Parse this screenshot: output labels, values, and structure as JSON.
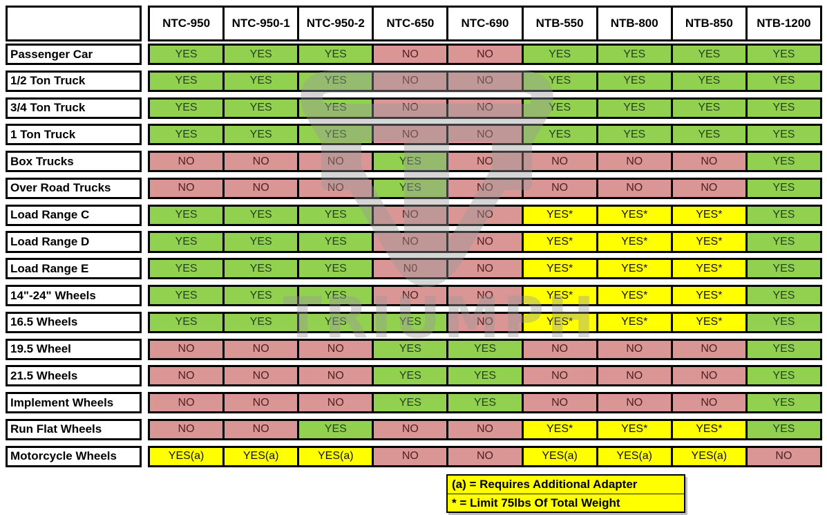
{
  "chart_data": {
    "type": "table",
    "columns": [
      "NTC-950",
      "NTC-950-1",
      "NTC-950-2",
      "NTC-650",
      "NTC-690",
      "NTB-550",
      "NTB-800",
      "NTB-850",
      "NTB-1200"
    ],
    "rows": [
      {
        "label": "Passenger Car",
        "values": [
          "YES",
          "YES",
          "YES",
          "NO",
          "NO",
          "YES",
          "YES",
          "YES",
          "YES"
        ]
      },
      {
        "label": "1/2 Ton Truck",
        "values": [
          "YES",
          "YES",
          "YES",
          "NO",
          "NO",
          "YES",
          "YES",
          "YES",
          "YES"
        ]
      },
      {
        "label": "3/4 Ton Truck",
        "values": [
          "YES",
          "YES",
          "YES",
          "NO",
          "NO",
          "YES",
          "YES",
          "YES",
          "YES"
        ]
      },
      {
        "label": "1 Ton Truck",
        "values": [
          "YES",
          "YES",
          "YES",
          "NO",
          "NO",
          "YES",
          "YES",
          "YES",
          "YES"
        ]
      },
      {
        "label": "Box Trucks",
        "values": [
          "NO",
          "NO",
          "NO",
          "YES",
          "NO",
          "NO",
          "NO",
          "NO",
          "YES"
        ]
      },
      {
        "label": "Over Road Trucks",
        "values": [
          "NO",
          "NO",
          "NO",
          "YES",
          "NO",
          "NO",
          "NO",
          "NO",
          "YES"
        ]
      },
      {
        "label": "Load Range C",
        "values": [
          "YES",
          "YES",
          "YES",
          "NO",
          "NO",
          "YES*",
          "YES*",
          "YES*",
          "YES"
        ]
      },
      {
        "label": "Load Range D",
        "values": [
          "YES",
          "YES",
          "YES",
          "NO",
          "NO",
          "YES*",
          "YES*",
          "YES*",
          "YES"
        ]
      },
      {
        "label": "Load Range E",
        "values": [
          "YES",
          "YES",
          "YES",
          "N0",
          "NO",
          "YES*",
          "YES*",
          "YES*",
          "YES"
        ]
      },
      {
        "label": "14\"-24\" Wheels",
        "values": [
          "YES",
          "YES",
          "YES",
          "NO",
          "NO",
          "YES*",
          "YES*",
          "YES*",
          "YES"
        ]
      },
      {
        "label": "16.5 Wheels",
        "values": [
          "YES",
          "YES",
          "YES",
          "YES",
          "NO",
          "YES*",
          "YES*",
          "YES*",
          "YES"
        ]
      },
      {
        "label": "19.5 Wheel",
        "values": [
          "NO",
          "NO",
          "NO",
          "YES",
          "YES",
          "NO",
          "NO",
          "NO",
          "YES"
        ]
      },
      {
        "label": "21.5 Wheels",
        "values": [
          "NO",
          "NO",
          "NO",
          "YES",
          "YES",
          "NO",
          "NO",
          "NO",
          "YES"
        ]
      },
      {
        "label": "Implement Wheels",
        "values": [
          "NO",
          "NO",
          "NO",
          "YES",
          "YES",
          "NO",
          "NO",
          "NO",
          "YES"
        ]
      },
      {
        "label": "Run Flat Wheels",
        "values": [
          "NO",
          "NO",
          "YES",
          "NO",
          "NO",
          "YES*",
          "YES*",
          "YES*",
          "YES"
        ]
      },
      {
        "label": "Motorcycle Wheels",
        "values": [
          "YES(a)",
          "YES(a)",
          "YES(a)",
          "NO",
          "NO",
          "YES(a)",
          "YES(a)",
          "YES(a)",
          "NO"
        ]
      }
    ]
  },
  "legend": {
    "lines": [
      "(a) = Requires Additional Adapter",
      "* = Limit 75lbs Of Total Weight"
    ]
  },
  "watermark": {
    "text": "TRIUMPH"
  },
  "colors": {
    "yes_bg": "#92D050",
    "no_bg": "#D99694",
    "special_bg": "#FFFF00",
    "yes_text": "#24401F",
    "no_text": "#4F2023",
    "special_text": "#111111",
    "border": "#000000",
    "page_bg": "#FFFFFF",
    "watermark": "#9A9A9A"
  }
}
